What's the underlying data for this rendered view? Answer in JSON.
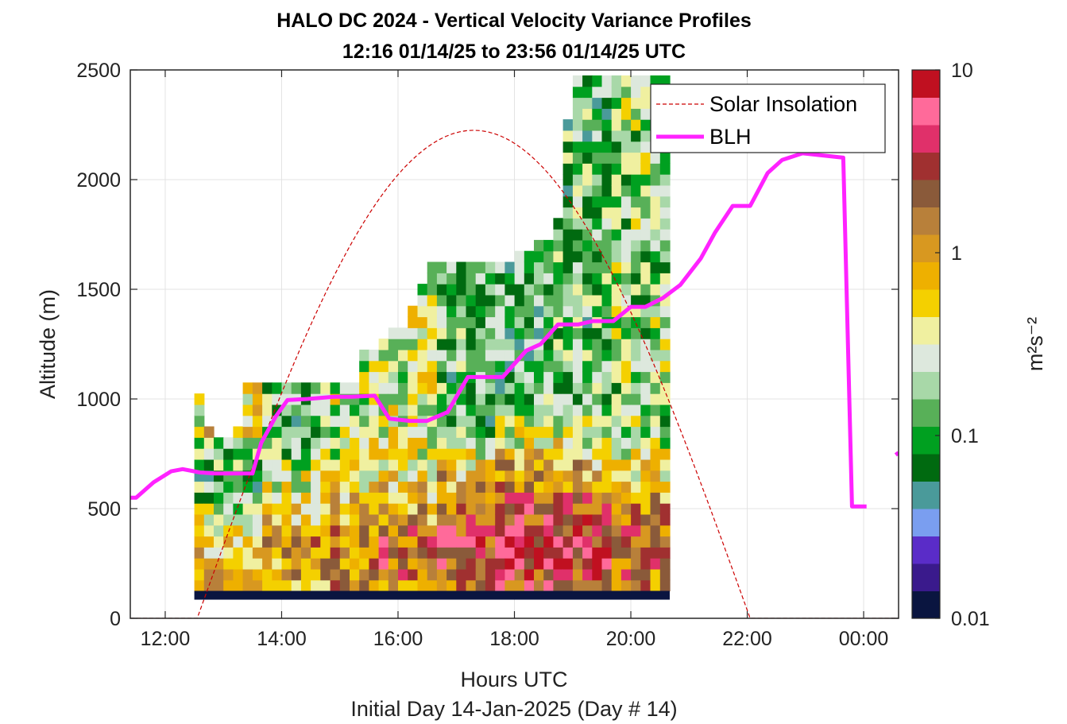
{
  "chart_data": {
    "type": "heatmap",
    "title_line1": "HALO DC 2024 - Vertical Velocity Variance Profiles",
    "title_line2": "12:16 01/14/25 to 23:56 01/14/25  UTC",
    "xlabel": "Hours UTC",
    "xlabel2": "Initial Day 14-Jan-2025 (Day # 14)",
    "ylabel": "Altitude (m)",
    "xlim": [
      11.4,
      24.6
    ],
    "ylim": [
      0,
      2500
    ],
    "x_ticks": [
      12,
      14,
      16,
      18,
      20,
      22,
      24
    ],
    "x_tick_labels": [
      "12:00",
      "14:00",
      "16:00",
      "18:00",
      "20:00",
      "22:00",
      "00:00"
    ],
    "y_ticks": [
      0,
      500,
      1000,
      1500,
      2000,
      2500
    ],
    "y_tick_labels": [
      "0",
      "500",
      "1000",
      "1500",
      "2000",
      "2500"
    ],
    "grid": true,
    "colorbar": {
      "label": "m²s⁻²",
      "scale": "log",
      "range": [
        0.01,
        10
      ],
      "ticks": [
        0.01,
        0.1,
        1,
        10
      ],
      "tick_labels": [
        "0.01",
        "0.1",
        "1",
        "10"
      ],
      "colors": [
        "#0a1540",
        "#3a1a8c",
        "#5a2cc8",
        "#7a9ef0",
        "#4a9a9a",
        "#006a10",
        "#00a020",
        "#58b058",
        "#a8d8a8",
        "#dde8dd",
        "#f0f0a0",
        "#f4d000",
        "#eeb000",
        "#d89820",
        "#b8803a",
        "#8a5a3a",
        "#a03030",
        "#e0306a",
        "#ff6a9a",
        "#c01020"
      ]
    },
    "legend_placement": "top-right",
    "legend": [
      {
        "name": "Solar Insolation",
        "style": "dashed",
        "color": "#cc0000"
      },
      {
        "name": "BLH",
        "style": "solid",
        "color": "#ff22ff"
      }
    ],
    "heatmap": {
      "t_start": 12.5,
      "dt": 0.1667,
      "z_start": 125,
      "dz": 50,
      "column_tops": [
        1000,
        850,
        800,
        800,
        850,
        1050,
        1050,
        1050,
        1050,
        1050,
        1050,
        1050,
        1050,
        1050,
        1050,
        1050,
        1050,
        1200,
        1200,
        1250,
        1300,
        1300,
        1400,
        1500,
        1600,
        1600,
        1600,
        1600,
        1600,
        1600,
        1600,
        1600,
        1600,
        1650,
        1650,
        1700,
        1700,
        1800,
        2250,
        2450,
        2450,
        2450,
        2450,
        2450,
        2450,
        2450,
        2450,
        2450,
        2450
      ],
      "base_layer_value": 0.01,
      "profile_values": [
        [
          0.7,
          0.8,
          0.7,
          0.6,
          0.55,
          0.45,
          0.3,
          0.2,
          0.15,
          0.12,
          0.1,
          0.15,
          0.15,
          0.2,
          0.6,
          0.4
        ],
        [
          0.9,
          1.0,
          1.1,
          1.2,
          1.0,
          0.8,
          0.6,
          0.5,
          0.4,
          0.3,
          0.25,
          0.2,
          0.15
        ],
        [
          1.0,
          1.2,
          1.4,
          1.5,
          1.3,
          1.1,
          0.9,
          0.7,
          0.55,
          0.45,
          0.35,
          0.3,
          0.25
        ],
        [
          1.2,
          1.5,
          1.8,
          2.0,
          1.8,
          1.5,
          1.2,
          1.0,
          0.8,
          0.6,
          0.5,
          0.4,
          0.3
        ],
        [
          1.5,
          2.0,
          2.5,
          3.0,
          2.8,
          2.4,
          2.0,
          1.6,
          1.3,
          1.0,
          0.8,
          0.6,
          0.4,
          0.3,
          0.2,
          0.15
        ],
        [
          2.5,
          3.5,
          4.5,
          5.0,
          4.8,
          4.0,
          3.2,
          2.6,
          2.0,
          1.6,
          1.2,
          0.9,
          0.6,
          0.4,
          0.3,
          0.25,
          0.2,
          0.15,
          0.12
        ],
        [
          2.0,
          2.8,
          3.5,
          4.0,
          3.8,
          3.2,
          2.6,
          2.0,
          1.6,
          1.2,
          0.9,
          0.7,
          0.5,
          0.35,
          0.25,
          0.2,
          0.15
        ],
        [
          1.2,
          1.5,
          1.8,
          2.0,
          1.8,
          1.5,
          1.2,
          1.0,
          0.8,
          0.6,
          0.5,
          0.4,
          0.3,
          0.2
        ]
      ]
    },
    "series": [
      {
        "name": "BLH",
        "x": [
          11.4,
          11.5,
          11.8,
          12.1,
          12.3,
          12.6,
          12.85,
          13.1,
          13.5,
          13.65,
          13.9,
          14.1,
          14.45,
          14.9,
          15.2,
          15.6,
          15.85,
          16.2,
          16.5,
          16.85,
          17.2,
          17.55,
          17.8,
          18.2,
          18.45,
          18.75,
          19.1,
          19.35,
          19.7,
          20.0,
          20.25,
          20.55,
          20.85,
          21.2,
          21.45,
          21.75,
          22.05,
          22.35,
          22.6,
          22.95,
          23.3,
          23.65,
          23.8,
          24.05,
          24.3,
          24.55,
          24.6
        ],
        "y": [
          550,
          550,
          620,
          670,
          680,
          665,
          660,
          660,
          660,
          800,
          920,
          995,
          1000,
          1010,
          1010,
          1015,
          910,
          900,
          900,
          940,
          1100,
          1100,
          1100,
          1220,
          1250,
          1340,
          1340,
          1355,
          1355,
          1420,
          1420,
          1460,
          1520,
          1640,
          1760,
          1880,
          1880,
          2030,
          2090,
          2120,
          2110,
          2100,
          510,
          510,
          null,
          745,
          755
        ]
      },
      {
        "name": "Solar Insolation",
        "sunrise": 12.55,
        "sunset": 22.05,
        "peak_x": 17.3,
        "peak_y": 2225
      }
    ]
  }
}
